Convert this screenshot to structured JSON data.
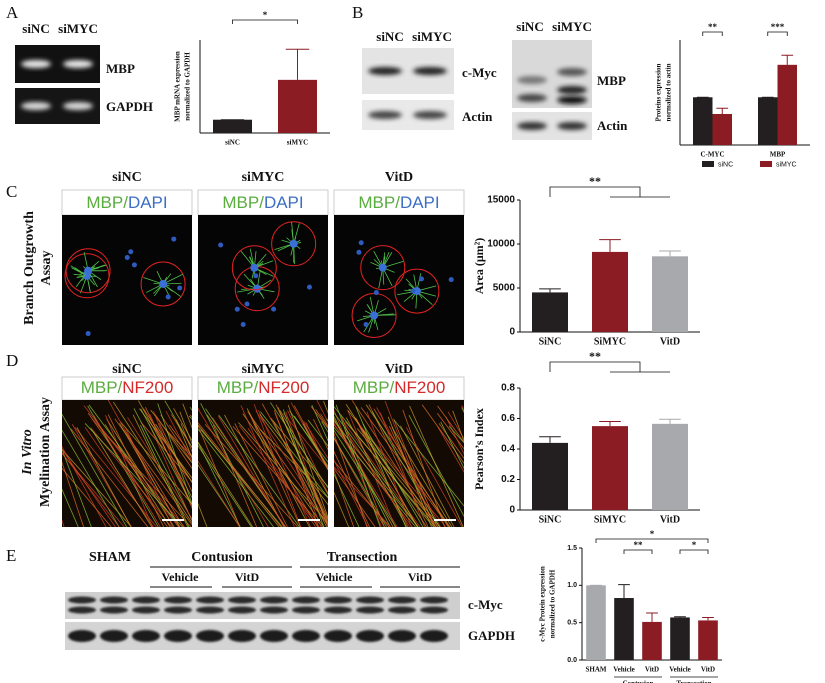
{
  "panels": {
    "A": {
      "letter": "A",
      "lanes": [
        "siNC",
        "siMYC"
      ],
      "bands": [
        "MBP",
        "GAPDH"
      ]
    },
    "B": {
      "letter": "B",
      "blot1": {
        "lanes": [
          "siNC",
          "siMYC"
        ],
        "bands": [
          "c-Myc",
          "Actin"
        ]
      },
      "blot2": {
        "lanes": [
          "siNC",
          "siMYC"
        ],
        "bands": [
          "MBP",
          "Actin"
        ]
      }
    },
    "C": {
      "letter": "C",
      "columns": [
        "siNC",
        "siMYC",
        "VitD"
      ],
      "stain": [
        "MBP",
        "/",
        "DAPI"
      ],
      "row_label": [
        "Branch Outgrowth",
        "Assay"
      ]
    },
    "D": {
      "letter": "D",
      "columns": [
        "siNC",
        "siMYC",
        "VitD"
      ],
      "stain": [
        "MBP",
        "/",
        "NF200"
      ],
      "row_label": [
        "In Vitro",
        "Myelination Assay"
      ]
    },
    "E": {
      "letter": "E",
      "groups": [
        "SHAM",
        "Contusion",
        "Transection"
      ],
      "treatments": [
        "Vehicle",
        "VitD",
        "Vehicle",
        "VitD"
      ],
      "bands": [
        "c-Myc",
        "GAPDH"
      ]
    }
  },
  "chart_data": [
    {
      "type": "bar",
      "ylabel": [
        "MBP mRNA expression",
        "normalized to GAPDH"
      ],
      "categories": [
        "siNC",
        "siMYC"
      ],
      "values": [
        1,
        4
      ],
      "errors": [
        0,
        2.3
      ],
      "colors": [
        "#231f20",
        "#8b1c24"
      ],
      "ylim": [
        0,
        7
      ],
      "annotations": [
        "*"
      ]
    },
    {
      "type": "grouped_bar",
      "ylabel": [
        "Proteins expression",
        "normalized to actin"
      ],
      "categories": [
        "C-MYC",
        "MBP"
      ],
      "series": [
        {
          "name": "siNC",
          "color": "#231f20",
          "values": [
            1,
            1
          ],
          "errors": [
            0,
            0
          ]
        },
        {
          "name": "siMYC",
          "color": "#8b1c24",
          "values": [
            0.65,
            1.68
          ],
          "errors": [
            0.12,
            0.2
          ]
        }
      ],
      "ylim": [
        0,
        2.2
      ],
      "annotations": [
        "**",
        "***"
      ],
      "legend": "bottom"
    },
    {
      "type": "bar",
      "ylabel": "Area (μm²)",
      "categories": [
        "SiNC",
        "SiMYC",
        "VitD"
      ],
      "values": [
        4500,
        9100,
        8600
      ],
      "errors": [
        400,
        1400,
        600
      ],
      "colors": [
        "#231f20",
        "#8b1c24",
        "#a7a9ac"
      ],
      "ylim": [
        0,
        15000
      ],
      "yticks": [
        0,
        5000,
        10000,
        15000
      ],
      "annotations": [
        "**"
      ]
    },
    {
      "type": "bar",
      "ylabel": "Pearson’s Index",
      "categories": [
        "SiNC",
        "SiMYC",
        "VitD"
      ],
      "values": [
        0.44,
        0.55,
        0.565
      ],
      "errors": [
        0.04,
        0.03,
        0.03
      ],
      "colors": [
        "#231f20",
        "#8b1c24",
        "#a7a9ac"
      ],
      "ylim": [
        0,
        0.8
      ],
      "yticks": [
        0,
        0.2,
        0.4,
        0.6,
        0.8
      ],
      "annotations": [
        "**"
      ]
    },
    {
      "type": "bar",
      "ylabel": [
        "c-Myc Protein expression",
        "normalized to GAPDH"
      ],
      "categories": [
        "SHAM",
        "Vehicle",
        "VitD",
        "Vehicle",
        "VitD"
      ],
      "groups": [
        "Contusion",
        "Transection"
      ],
      "values": [
        1.0,
        0.83,
        0.51,
        0.57,
        0.53
      ],
      "errors": [
        0,
        0.18,
        0.12,
        0.01,
        0.04
      ],
      "colors": [
        "#a7a9ac",
        "#231f20",
        "#8b1c24",
        "#231f20",
        "#8b1c24"
      ],
      "ylim": [
        0,
        1.5
      ],
      "yticks": [
        {
          "value": 0,
          "label": "0.0"
        },
        {
          "value": 0.5,
          "label": "0.5"
        },
        {
          "value": 1,
          "label": "1.0"
        },
        {
          "value": 1.5,
          "label": "1.5"
        }
      ],
      "annotations": [
        "*",
        "**",
        "*"
      ]
    }
  ]
}
